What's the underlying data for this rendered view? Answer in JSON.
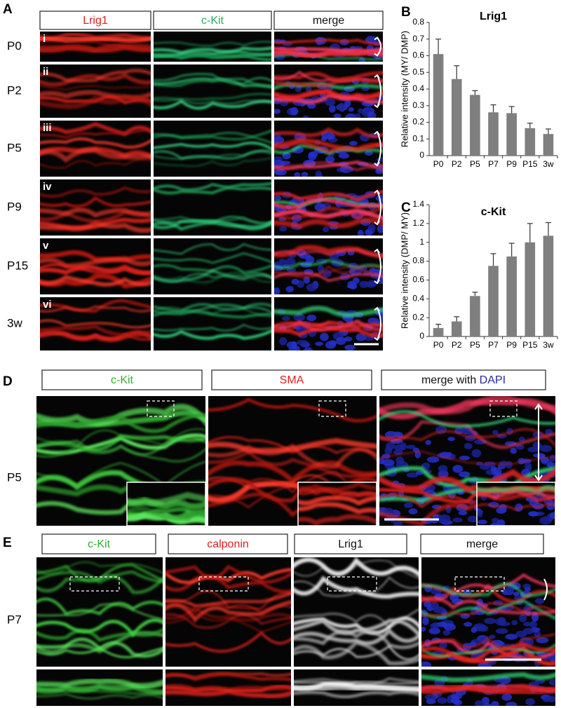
{
  "panel_a": {
    "label": "A",
    "headers": [
      "Lrig1",
      "c-Kit",
      "merge"
    ],
    "rows": [
      "P0",
      "P2",
      "P5",
      "P9",
      "P15",
      "3w"
    ],
    "row_numerals": [
      "i",
      "ii",
      "iii",
      "iv",
      "v",
      "vi"
    ]
  },
  "panel_d": {
    "label": "D",
    "headers": [
      "c-Kit",
      "SMA"
    ],
    "merge_header": [
      "merge with",
      "DAPI"
    ],
    "row": "P5"
  },
  "panel_e": {
    "label": "E",
    "headers": [
      "c-Kit",
      "calponin",
      "Lrig1",
      "merge"
    ],
    "row": "P7"
  },
  "chart_data": [
    {
      "type": "bar",
      "panel": "B",
      "title": "Lrig1",
      "y_label": "Relative intensity (MY/ DMP)",
      "categories": [
        "P0",
        "P2",
        "P5",
        "P7",
        "P9",
        "P15",
        "3w"
      ],
      "values": [
        0.61,
        0.46,
        0.365,
        0.26,
        0.255,
        0.165,
        0.13
      ],
      "errors": [
        0.09,
        0.08,
        0.025,
        0.045,
        0.04,
        0.03,
        0.03
      ],
      "color": "#7f7f7f",
      "ylim": [
        0,
        0.8
      ],
      "yticks": [
        0,
        0.1,
        0.2,
        0.3,
        0.4,
        0.5,
        0.6,
        0.7,
        0.8
      ],
      "grid": false
    },
    {
      "type": "bar",
      "panel": "C",
      "title": "c-Kit",
      "y_label": "Relative intensity (DMP/ MY)",
      "categories": [
        "P0",
        "P2",
        "P5",
        "P7",
        "P9",
        "P15",
        "3w"
      ],
      "values": [
        0.09,
        0.16,
        0.43,
        0.75,
        0.85,
        1.0,
        1.07
      ],
      "errors": [
        0.04,
        0.05,
        0.04,
        0.13,
        0.14,
        0.2,
        0.14
      ],
      "color": "#7f7f7f",
      "ylim": [
        0,
        1.4
      ],
      "yticks": [
        0,
        0.2,
        0.4,
        0.6,
        0.8,
        1,
        1.2,
        1.4
      ],
      "grid": false
    }
  ]
}
